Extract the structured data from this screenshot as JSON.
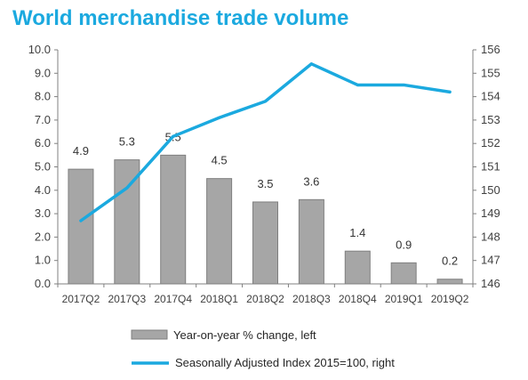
{
  "chart_data": {
    "type": "bar",
    "title": "World merchandise trade volume",
    "categories": [
      "2017Q2",
      "2017Q3",
      "2017Q4",
      "2018Q1",
      "2018Q2",
      "2018Q3",
      "2018Q4",
      "2019Q1",
      "2019Q2"
    ],
    "series": [
      {
        "name": "Year-on-year % change, left",
        "type": "bar",
        "axis": "left",
        "values": [
          4.9,
          5.3,
          5.5,
          4.5,
          3.5,
          3.6,
          1.4,
          0.9,
          0.2
        ],
        "data_labels": [
          "4.9",
          "5.3",
          "5.5",
          "4.5",
          "3.5",
          "3.6",
          "1.4",
          "0.9",
          "0.2"
        ]
      },
      {
        "name": "Seasonally Adjusted Index 2015=100, right",
        "type": "line",
        "axis": "right",
        "values": [
          148.7,
          150.1,
          152.3,
          153.1,
          153.8,
          155.4,
          154.5,
          154.5,
          154.2
        ]
      }
    ],
    "y_left": {
      "min": 0,
      "max": 10,
      "ticks": [
        "0.0",
        "1.0",
        "2.0",
        "3.0",
        "4.0",
        "5.0",
        "6.0",
        "7.0",
        "8.0",
        "9.0",
        "10.0"
      ]
    },
    "y_right": {
      "min": 146,
      "max": 156,
      "ticks": [
        "146",
        "147",
        "148",
        "149",
        "150",
        "151",
        "152",
        "153",
        "154",
        "155",
        "156"
      ]
    },
    "grid": false,
    "legend_position": "bottom",
    "colors": {
      "title": "#1BA9DF",
      "bar_fill": "#A6A6A6",
      "bar_stroke": "#7F7F7F",
      "line": "#1BA9DF",
      "axis": "#808080"
    }
  }
}
